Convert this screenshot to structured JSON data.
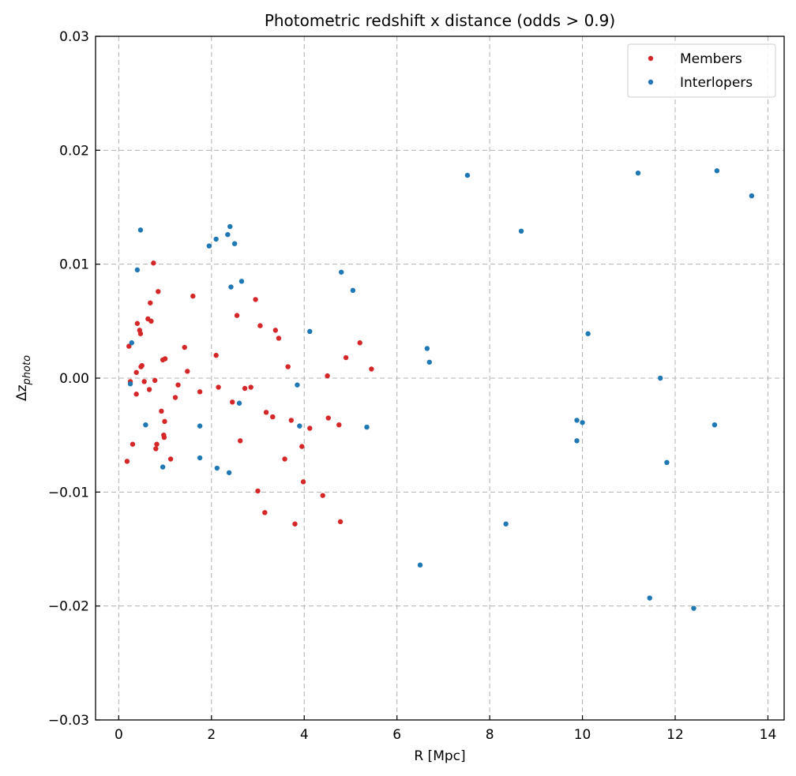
{
  "chart_data": {
    "type": "scatter",
    "title": "Photometric redshift x distance (odds > 0.9)",
    "xlabel": "R [Mpc]",
    "ylabel_base": "Δz",
    "ylabel_sub": "photo",
    "xlim": [
      -0.5,
      14.35
    ],
    "ylim": [
      -0.03,
      0.03
    ],
    "xticks": [
      0,
      2,
      4,
      6,
      8,
      10,
      12,
      14
    ],
    "xtick_labels": [
      "0",
      "2",
      "4",
      "6",
      "8",
      "10",
      "12",
      "14"
    ],
    "yticks": [
      -0.03,
      -0.02,
      -0.01,
      0.0,
      0.01,
      0.02,
      0.03
    ],
    "ytick_labels": [
      "−0.03",
      "−0.02",
      "−0.01",
      "0.00",
      "0.01",
      "0.02",
      "0.03"
    ],
    "grid": true,
    "legend_position": "top-right",
    "series": [
      {
        "name": "Members",
        "color": "#d62728",
        "points": [
          [
            0.18,
            -0.0073
          ],
          [
            0.22,
            0.0028
          ],
          [
            0.25,
            -0.0003
          ],
          [
            0.3,
            -0.0058
          ],
          [
            0.38,
            0.0005
          ],
          [
            0.38,
            -0.0014
          ],
          [
            0.4,
            0.0048
          ],
          [
            0.45,
            0.0042
          ],
          [
            0.47,
            0.0039
          ],
          [
            0.48,
            0.001
          ],
          [
            0.5,
            0.0011
          ],
          [
            0.55,
            -0.0003
          ],
          [
            0.63,
            0.0052
          ],
          [
            0.66,
            -0.001
          ],
          [
            0.68,
            0.0066
          ],
          [
            0.7,
            0.005
          ],
          [
            0.75,
            0.0101
          ],
          [
            0.78,
            -0.0002
          ],
          [
            0.8,
            -0.0062
          ],
          [
            0.82,
            -0.0058
          ],
          [
            0.85,
            0.0076
          ],
          [
            0.92,
            -0.0029
          ],
          [
            0.95,
            0.0016
          ],
          [
            0.97,
            -0.005
          ],
          [
            0.98,
            -0.0052
          ],
          [
            0.99,
            -0.0038
          ],
          [
            1.0,
            0.0017
          ],
          [
            1.12,
            -0.0071
          ],
          [
            1.22,
            -0.0017
          ],
          [
            1.28,
            -0.0006
          ],
          [
            1.42,
            0.0027
          ],
          [
            1.48,
            0.0006
          ],
          [
            1.6,
            0.0072
          ],
          [
            1.75,
            -0.0012
          ],
          [
            2.1,
            0.002
          ],
          [
            2.15,
            -0.0008
          ],
          [
            2.45,
            -0.0021
          ],
          [
            2.55,
            0.0055
          ],
          [
            2.62,
            -0.0055
          ],
          [
            2.72,
            -0.0009
          ],
          [
            2.85,
            -0.0008
          ],
          [
            2.95,
            0.0069
          ],
          [
            3.0,
            -0.0099
          ],
          [
            3.05,
            0.0046
          ],
          [
            3.15,
            -0.0118
          ],
          [
            3.18,
            -0.003
          ],
          [
            3.32,
            -0.0034
          ],
          [
            3.38,
            0.0042
          ],
          [
            3.45,
            0.0035
          ],
          [
            3.58,
            -0.0071
          ],
          [
            3.65,
            0.001
          ],
          [
            3.72,
            -0.0037
          ],
          [
            3.8,
            -0.0128
          ],
          [
            3.95,
            -0.006
          ],
          [
            3.98,
            -0.0091
          ],
          [
            4.12,
            -0.0044
          ],
          [
            4.4,
            -0.0103
          ],
          [
            4.5,
            0.0002
          ],
          [
            4.52,
            -0.0035
          ],
          [
            4.75,
            -0.0041
          ],
          [
            4.78,
            -0.0126
          ],
          [
            4.9,
            0.0018
          ],
          [
            5.2,
            0.0031
          ],
          [
            5.45,
            0.0008
          ]
        ]
      },
      {
        "name": "Interlopers",
        "color": "#1f77b4",
        "points": [
          [
            0.25,
            -0.0005
          ],
          [
            0.28,
            0.0031
          ],
          [
            0.4,
            0.0095
          ],
          [
            0.47,
            0.013
          ],
          [
            0.58,
            -0.0041
          ],
          [
            0.95,
            -0.0078
          ],
          [
            1.75,
            -0.0042
          ],
          [
            1.75,
            -0.007
          ],
          [
            1.95,
            0.0116
          ],
          [
            2.1,
            0.0122
          ],
          [
            2.12,
            -0.0079
          ],
          [
            2.35,
            0.0126
          ],
          [
            2.38,
            -0.0083
          ],
          [
            2.4,
            0.0133
          ],
          [
            2.42,
            0.008
          ],
          [
            2.5,
            0.0118
          ],
          [
            2.6,
            -0.0022
          ],
          [
            2.65,
            0.0085
          ],
          [
            3.85,
            -0.0006
          ],
          [
            3.9,
            -0.0042
          ],
          [
            4.12,
            0.0041
          ],
          [
            4.8,
            0.0093
          ],
          [
            5.05,
            0.0077
          ],
          [
            5.35,
            -0.0043
          ],
          [
            6.5,
            -0.0164
          ],
          [
            6.65,
            0.0026
          ],
          [
            6.7,
            0.0014
          ],
          [
            7.52,
            0.0178
          ],
          [
            8.35,
            -0.0128
          ],
          [
            8.68,
            0.0129
          ],
          [
            9.88,
            -0.0037
          ],
          [
            9.88,
            -0.0055
          ],
          [
            10.0,
            -0.0039
          ],
          [
            10.12,
            0.0039
          ],
          [
            11.2,
            0.018
          ],
          [
            11.45,
            -0.0193
          ],
          [
            11.68,
            0.0
          ],
          [
            11.82,
            -0.0074
          ],
          [
            12.4,
            -0.0202
          ],
          [
            12.85,
            -0.0041
          ],
          [
            12.9,
            0.0182
          ],
          [
            13.65,
            0.016
          ]
        ]
      }
    ]
  }
}
